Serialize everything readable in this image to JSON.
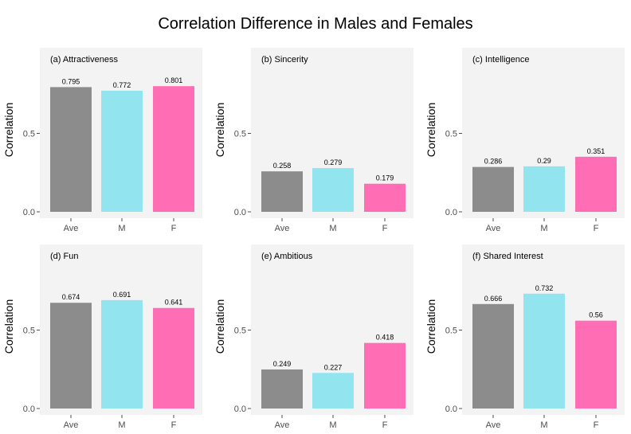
{
  "title": "Correlation Difference in Males and Females",
  "colors": {
    "Ave": "#8c8c8c",
    "M": "#92e5ee",
    "F": "#ff6eb4"
  },
  "chart_data": [
    {
      "type": "bar",
      "title": "(a) Attractiveness",
      "ylabel": "Correlation",
      "categories": [
        "Ave",
        "M",
        "F"
      ],
      "values": [
        0.795,
        0.772,
        0.801
      ],
      "labels": [
        "0.795",
        "0.772",
        "0.801"
      ],
      "yticks": [
        0.0,
        0.5
      ],
      "ytick_labels": [
        "0.0",
        "0.5"
      ],
      "ylim": [
        0,
        0.9
      ],
      "grid": false
    },
    {
      "type": "bar",
      "title": "(b) Sincerity",
      "ylabel": "Correlation",
      "categories": [
        "Ave",
        "M",
        "F"
      ],
      "values": [
        0.258,
        0.279,
        0.179
      ],
      "labels": [
        "0.258",
        "0.279",
        "0.179"
      ],
      "yticks": [
        0.0,
        0.5
      ],
      "ytick_labels": [
        "0.0",
        "0.5"
      ],
      "ylim": [
        0,
        0.9
      ],
      "grid": false
    },
    {
      "type": "bar",
      "title": "(c) Intelligence",
      "ylabel": "Correlation",
      "categories": [
        "Ave",
        "M",
        "F"
      ],
      "values": [
        0.286,
        0.29,
        0.351
      ],
      "labels": [
        "0.286",
        "0.29",
        "0.351"
      ],
      "yticks": [
        0.0,
        0.5
      ],
      "ytick_labels": [
        "0.0",
        "0.5"
      ],
      "ylim": [
        0,
        0.9
      ],
      "grid": false
    },
    {
      "type": "bar",
      "title": "(d) Fun",
      "ylabel": "Correlation",
      "categories": [
        "Ave",
        "M",
        "F"
      ],
      "values": [
        0.674,
        0.691,
        0.641
      ],
      "labels": [
        "0.674",
        "0.691",
        "0.641"
      ],
      "yticks": [
        0.0,
        0.5
      ],
      "ytick_labels": [
        "0.0",
        "0.5"
      ],
      "ylim": [
        0,
        0.9
      ],
      "grid": false
    },
    {
      "type": "bar",
      "title": "(e) Ambitious",
      "ylabel": "Correlation",
      "categories": [
        "Ave",
        "M",
        "F"
      ],
      "values": [
        0.249,
        0.227,
        0.418
      ],
      "labels": [
        "0.249",
        "0.227",
        "0.418"
      ],
      "yticks": [
        0.0,
        0.5
      ],
      "ytick_labels": [
        "0.0",
        "0.5"
      ],
      "ylim": [
        0,
        0.9
      ],
      "grid": false
    },
    {
      "type": "bar",
      "title": "(f) Shared Interest",
      "ylabel": "Correlation",
      "categories": [
        "Ave",
        "M",
        "F"
      ],
      "values": [
        0.666,
        0.732,
        0.56
      ],
      "labels": [
        "0.666",
        "0.732",
        "0.56"
      ],
      "yticks": [
        0.0,
        0.5
      ],
      "ytick_labels": [
        "0.0",
        "0.5"
      ],
      "ylim": [
        0,
        0.9
      ],
      "grid": false
    }
  ]
}
